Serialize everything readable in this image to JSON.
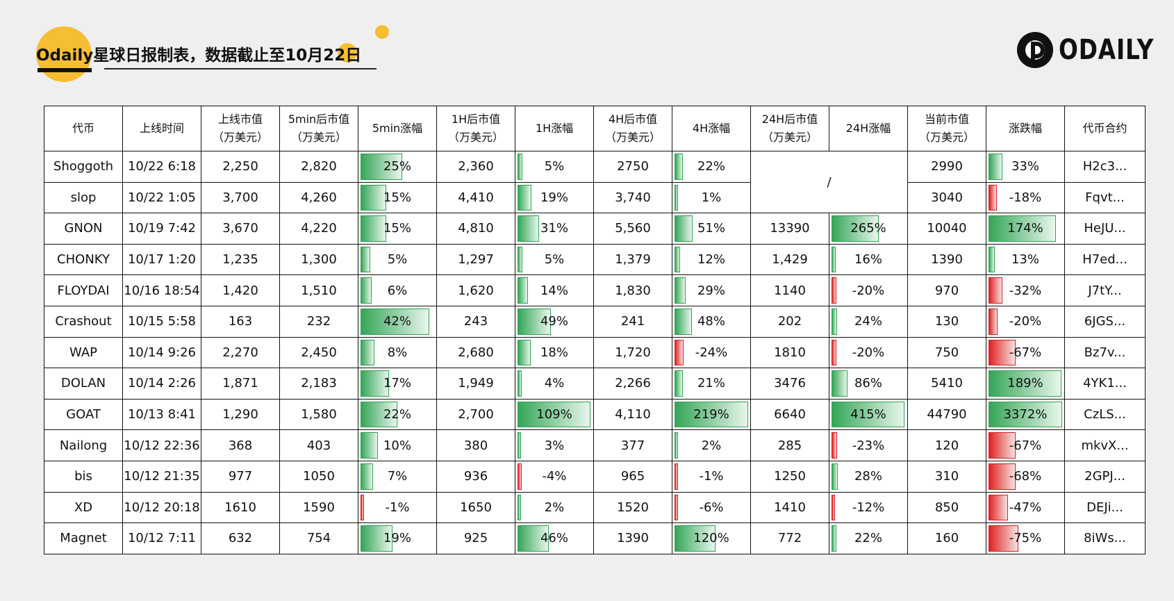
{
  "header": {
    "title": "Odaily星球日报制表，数据截止至10月22日",
    "logo_text": "ODAILY"
  },
  "colors": {
    "accent": "#f6be33",
    "positive": "#35a658",
    "negative": "#e02424"
  },
  "chart_data": {
    "type": "table",
    "columns": [
      "代币",
      "上线时间",
      "上线市值\n（万美元）",
      "5min后市值\n（万美元）",
      "5min涨幅",
      "1H后市值\n（万美元）",
      "1H涨幅",
      "4H后市值\n（万美元）",
      "4H涨幅",
      "24H后市值\n（万美元）",
      "24H涨幅",
      "当前市值\n（万美元）",
      "涨跌幅",
      "代币合约"
    ],
    "rows": [
      [
        "Shoggoth",
        "10/22 6:18",
        "2,250",
        "2,820",
        "25%",
        "2,360",
        "5%",
        "2750",
        "22%",
        "/",
        "",
        "2990",
        "33%",
        "H2c3..."
      ],
      [
        "slop",
        "10/22 1:05",
        "3,700",
        "4,260",
        "15%",
        "4,410",
        "19%",
        "3,740",
        "1%",
        "",
        "",
        "3040",
        "-18%",
        "Fqvt..."
      ],
      [
        "GNON",
        "10/19 7:42",
        "3,670",
        "4,220",
        "15%",
        "4,810",
        "31%",
        "5,560",
        "51%",
        "13390",
        "265%",
        "10040",
        "174%",
        "HeJU..."
      ],
      [
        "CHONKY",
        "10/17 1:20",
        "1,235",
        "1,300",
        "5%",
        "1,297",
        "5%",
        "1,379",
        "12%",
        "1,429",
        "16%",
        "1390",
        "13%",
        "H7ed..."
      ],
      [
        "FLOYDAI",
        "10/16 18:54",
        "1,420",
        "1,510",
        "6%",
        "1,620",
        "14%",
        "1,830",
        "29%",
        "1140",
        "-20%",
        "970",
        "-32%",
        "J7tY..."
      ],
      [
        "Crashout",
        "10/15 5:58",
        "163",
        "232",
        "42%",
        "243",
        "49%",
        "241",
        "48%",
        "202",
        "24%",
        "130",
        "-20%",
        "6JGS..."
      ],
      [
        "WAP",
        "10/14 9:26",
        "2,270",
        "2,450",
        "8%",
        "2,680",
        "18%",
        "1,720",
        "-24%",
        "1810",
        "-20%",
        "750",
        "-67%",
        "Bz7v..."
      ],
      [
        "DOLAN",
        "10/14 2:26",
        "1,871",
        "2,183",
        "17%",
        "1,949",
        "4%",
        "2,266",
        "21%",
        "3476",
        "86%",
        "5410",
        "189%",
        "4YK1..."
      ],
      [
        "GOAT",
        "10/13 8:41",
        "1,290",
        "1,580",
        "22%",
        "2,700",
        "109%",
        "4,110",
        "219%",
        "6640",
        "415%",
        "44790",
        "3372%",
        "CzLS..."
      ],
      [
        "Nailong",
        "10/12 22:36",
        "368",
        "403",
        "10%",
        "380",
        "3%",
        "377",
        "2%",
        "285",
        "-23%",
        "120",
        "-67%",
        "mkvX..."
      ],
      [
        "bis",
        "10/12 21:35",
        "977",
        "1050",
        "7%",
        "936",
        "-4%",
        "965",
        "-1%",
        "1250",
        "28%",
        "310",
        "-68%",
        "2GPJ..."
      ],
      [
        "XD",
        "10/12 20:18",
        "1610",
        "1590",
        "-1%",
        "1650",
        "2%",
        "1520",
        "-6%",
        "1410",
        "-12%",
        "850",
        "-47%",
        "DEJi..."
      ],
      [
        "Magnet",
        "10/12 7:11",
        "632",
        "754",
        "19%",
        "925",
        "46%",
        "1390",
        "120%",
        "772",
        "22%",
        "160",
        "-75%",
        "8iWs..."
      ]
    ],
    "pct_columns": [
      4,
      6,
      8,
      10,
      12
    ],
    "pct_values": [
      [
        25,
        5,
        22,
        null,
        33
      ],
      [
        15,
        19,
        1,
        null,
        -18
      ],
      [
        15,
        31,
        51,
        265,
        174
      ],
      [
        5,
        5,
        12,
        16,
        13
      ],
      [
        6,
        14,
        29,
        -20,
        -32
      ],
      [
        42,
        49,
        48,
        24,
        -20
      ],
      [
        8,
        18,
        -24,
        -20,
        -67
      ],
      [
        17,
        4,
        21,
        86,
        189
      ],
      [
        22,
        109,
        219,
        415,
        3372
      ],
      [
        10,
        3,
        2,
        -23,
        -67
      ],
      [
        7,
        -4,
        -1,
        28,
        -68
      ],
      [
        -1,
        2,
        -6,
        -12,
        -47
      ],
      [
        19,
        46,
        120,
        22,
        -75
      ]
    ]
  }
}
